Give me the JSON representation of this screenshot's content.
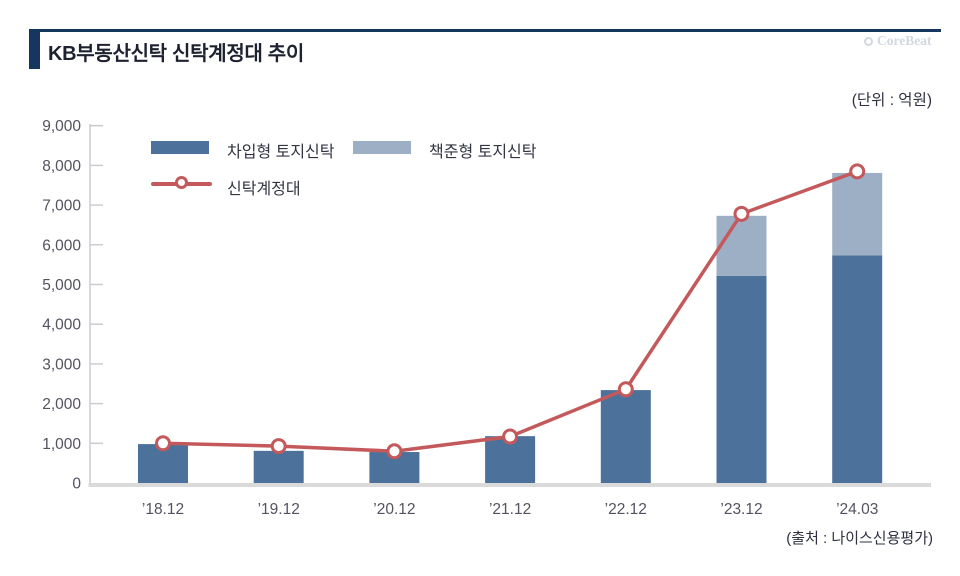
{
  "header": {
    "title": "KB부동산신탁 신탁계정대 추이",
    "watermark": "CoreBeat"
  },
  "unit_label": "(단위 : 억원)",
  "source_label": "(출처 : 나이스신용평가)",
  "legend": {
    "items": [
      {
        "label": "차입형 토지신탁",
        "type": "bar",
        "color": "#4C719B"
      },
      {
        "label": "책준형 토지신탁",
        "type": "bar",
        "color": "#9CAFC5"
      },
      {
        "label": "신탁계정대",
        "type": "line",
        "color": "#C4595C"
      }
    ]
  },
  "colors": {
    "accent_navy": "#15365F",
    "bar_dark": "#4C719B",
    "bar_light": "#9CAFC5",
    "line_red": "#C4595C",
    "axis_gray": "#CBCCD2",
    "baseline_gray": "#DADADA",
    "tick_label": "#52535F",
    "watermark_gray": "#D3D7E0"
  },
  "chart_data": {
    "type": "bar",
    "subtype": "stacked-bar-with-line",
    "title": "KB부동산신탁 신탁계정대 추이",
    "unit": "억원",
    "categories": [
      "’18.12",
      "’19.12",
      "’20.12",
      "’21.12",
      "’22.12",
      "’23.12",
      "’24.03"
    ],
    "series": [
      {
        "name": "차입형 토지신탁",
        "type": "bar",
        "stack": "trust",
        "color": "#4C719B",
        "values": [
          980,
          810,
          780,
          1180,
          2340,
          5220,
          5730
        ]
      },
      {
        "name": "책준형 토지신탁",
        "type": "bar",
        "stack": "trust",
        "color": "#9CAFC5",
        "values": [
          0,
          0,
          0,
          0,
          0,
          1510,
          2080
        ]
      },
      {
        "name": "신탁계정대",
        "type": "line",
        "color": "#C4595C",
        "values": [
          1000,
          930,
          800,
          1170,
          2360,
          6780,
          7850
        ]
      }
    ],
    "xlabel": "",
    "ylabel": "",
    "ylim": [
      0,
      9000
    ],
    "ytick_step": 1000,
    "grid": false,
    "legend_position": "top-left",
    "source": "나이스신용평가"
  }
}
